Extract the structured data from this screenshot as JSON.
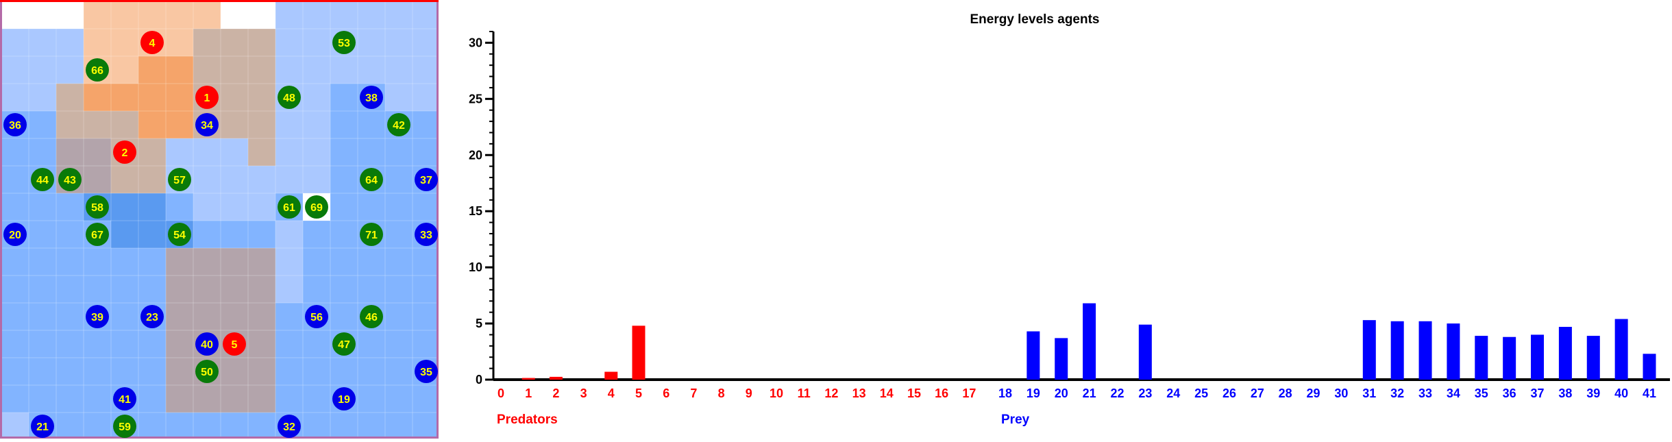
{
  "world": {
    "rows": 16,
    "cols": 16,
    "palette": {
      "white": "#ffffff",
      "blue_light": "#aac8ff",
      "blue_mid": "#82b4ff",
      "blue_deep": "#5a9af0",
      "blue_pale": "#b9d5ff",
      "territory_peach": "#f9c7a3",
      "territory_orange": "#f5a46a",
      "territory_tan": "#cbb3a5",
      "territory_mauve": "#b3a4ab",
      "frame": "#b46aa8",
      "top_edge": "#ff0000",
      "predator": "#ff0000",
      "prey": "#0000e8",
      "plant": "#097a09",
      "plant_highlight": "#ffffff",
      "label": "#ffff00"
    },
    "tiles": [
      "WWWPPPPPWWLLLLLL",
      "LLLPPPPTTTLLLLLL",
      "LLLPPOOTTTLLLLLL",
      "LLTOOOOTTTLLMMLL",
      "MMTTTOOTTTLLMMMM",
      "MMKKTTLLLTLLMMMM",
      "MMKKTTLLLLLLMMMM",
      "MMMDDDMLLLMMMMMM",
      "MMMMDDDMMMLMMMMM",
      "MMMMMMKKKKLMMMMM",
      "MMMMMMKKKKLMMMMM",
      "MMMMMMKKKKMMMMMM",
      "MMMMMMKKKKMMMMMM",
      "MMMMMMKKKKMMMMMM",
      "MMMMMMKKKKMMMMMM",
      "LMMMMMMMMMMMMMMM"
    ],
    "agents": [
      {
        "id": "4",
        "kind": "predator",
        "col": 5,
        "row": 1
      },
      {
        "id": "1",
        "kind": "predator",
        "col": 7,
        "row": 3
      },
      {
        "id": "2",
        "kind": "predator",
        "col": 4,
        "row": 5
      },
      {
        "id": "5",
        "kind": "predator",
        "col": 8,
        "row": 12
      },
      {
        "id": "36",
        "kind": "prey",
        "col": 0,
        "row": 4
      },
      {
        "id": "34",
        "kind": "prey",
        "col": 7,
        "row": 4
      },
      {
        "id": "38",
        "kind": "prey",
        "col": 13,
        "row": 3
      },
      {
        "id": "37",
        "kind": "prey",
        "col": 15,
        "row": 6
      },
      {
        "id": "20",
        "kind": "prey",
        "col": 0,
        "row": 8
      },
      {
        "id": "33",
        "kind": "prey",
        "col": 15,
        "row": 8
      },
      {
        "id": "39",
        "kind": "prey",
        "col": 3,
        "row": 11
      },
      {
        "id": "23",
        "kind": "prey",
        "col": 5,
        "row": 11
      },
      {
        "id": "56",
        "kind": "prey",
        "col": 11,
        "row": 11
      },
      {
        "id": "40",
        "kind": "prey",
        "col": 7,
        "row": 12
      },
      {
        "id": "35",
        "kind": "prey",
        "col": 15,
        "row": 13
      },
      {
        "id": "41",
        "kind": "prey",
        "col": 4,
        "row": 14
      },
      {
        "id": "19",
        "kind": "prey",
        "col": 12,
        "row": 14
      },
      {
        "id": "21",
        "kind": "prey",
        "col": 1,
        "row": 15
      },
      {
        "id": "32",
        "kind": "prey",
        "col": 10,
        "row": 15
      },
      {
        "id": "53",
        "kind": "plant",
        "col": 12,
        "row": 1
      },
      {
        "id": "66",
        "kind": "plant",
        "col": 3,
        "row": 2
      },
      {
        "id": "48",
        "kind": "plant",
        "col": 10,
        "row": 3
      },
      {
        "id": "42",
        "kind": "plant",
        "col": 14,
        "row": 4
      },
      {
        "id": "44",
        "kind": "plant",
        "col": 1,
        "row": 6
      },
      {
        "id": "43",
        "kind": "plant",
        "col": 2,
        "row": 6
      },
      {
        "id": "57",
        "kind": "plant",
        "col": 6,
        "row": 6
      },
      {
        "id": "64",
        "kind": "plant",
        "col": 13,
        "row": 6
      },
      {
        "id": "58",
        "kind": "plant",
        "col": 3,
        "row": 7
      },
      {
        "id": "61",
        "kind": "plant",
        "col": 10,
        "row": 7
      },
      {
        "id": "69",
        "kind": "plant",
        "col": 11,
        "row": 7,
        "highlight": true
      },
      {
        "id": "67",
        "kind": "plant",
        "col": 3,
        "row": 8
      },
      {
        "id": "54",
        "kind": "plant",
        "col": 6,
        "row": 8
      },
      {
        "id": "71",
        "kind": "plant",
        "col": 13,
        "row": 8
      },
      {
        "id": "46",
        "kind": "plant",
        "col": 13,
        "row": 11
      },
      {
        "id": "47",
        "kind": "plant",
        "col": 12,
        "row": 12
      },
      {
        "id": "50",
        "kind": "plant",
        "col": 7,
        "row": 13
      },
      {
        "id": "59",
        "kind": "plant",
        "col": 4,
        "row": 15
      }
    ]
  },
  "chart_data": {
    "type": "bar",
    "title": "Energy levels agents",
    "xlabel": "",
    "ylabel": "",
    "ylim": [
      0,
      31
    ],
    "yticks": [
      0,
      5,
      10,
      15,
      20,
      25,
      30
    ],
    "grid": false,
    "groups": [
      {
        "name": "Predators",
        "color": "#ff0000"
      },
      {
        "name": "Prey",
        "color": "#0000ff"
      }
    ],
    "categories": [
      "0",
      "1",
      "2",
      "3",
      "4",
      "5",
      "6",
      "7",
      "8",
      "9",
      "10",
      "11",
      "12",
      "13",
      "14",
      "15",
      "16",
      "17",
      "18",
      "19",
      "20",
      "21",
      "22",
      "23",
      "24",
      "25",
      "26",
      "27",
      "28",
      "29",
      "30",
      "31",
      "32",
      "33",
      "34",
      "35",
      "36",
      "37",
      "38",
      "39",
      "40",
      "41"
    ],
    "category_group": [
      0,
      0,
      0,
      0,
      0,
      0,
      0,
      0,
      0,
      0,
      0,
      0,
      0,
      0,
      0,
      0,
      0,
      0,
      1,
      1,
      1,
      1,
      1,
      1,
      1,
      1,
      1,
      1,
      1,
      1,
      1,
      1,
      1,
      1,
      1,
      1,
      1,
      1,
      1,
      1,
      1,
      1
    ],
    "values": [
      0,
      0.15,
      0.25,
      0,
      0.7,
      4.8,
      0,
      0,
      0,
      0,
      0,
      0,
      0,
      0,
      0,
      0,
      0,
      0,
      0,
      4.3,
      3.7,
      6.8,
      0,
      4.9,
      0,
      0,
      0,
      0,
      0,
      0,
      0,
      5.3,
      5.2,
      5.2,
      5.0,
      3.9,
      3.8,
      4.0,
      4.7,
      3.9,
      5.4,
      2.3
    ]
  }
}
